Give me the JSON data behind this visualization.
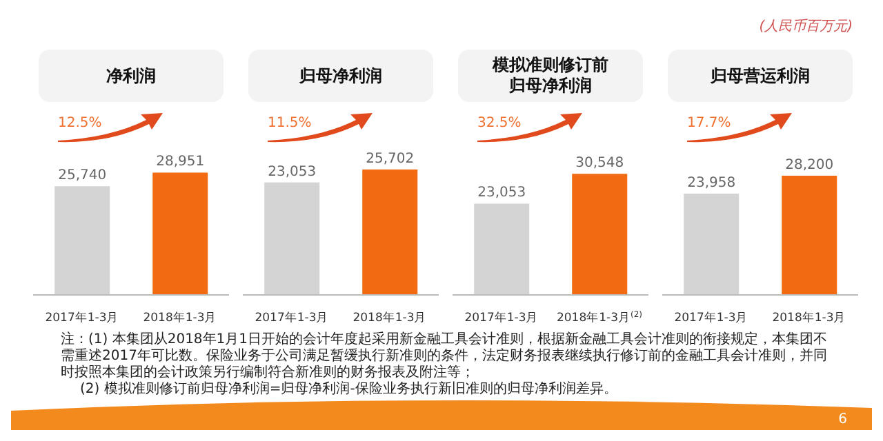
{
  "chart_data": [
    {
      "type": "bar",
      "title": "净利润",
      "categories": [
        "2017年1-3月",
        "2018年1-3月"
      ],
      "values": [
        25740,
        28951
      ],
      "colors": [
        "#d4d4d4",
        "#f26a12"
      ],
      "value_labels": [
        "25,740",
        "28,951"
      ],
      "annotations": [
        "12.5%"
      ]
    },
    {
      "type": "bar",
      "title": "归母净利润",
      "categories": [
        "2017年1-3月",
        "2018年1-3月"
      ],
      "values": [
        23053,
        25702
      ],
      "colors": [
        "#d4d4d4",
        "#f26a12"
      ],
      "value_labels": [
        "23,053",
        "25,702"
      ],
      "annotations": [
        "11.5%"
      ]
    },
    {
      "type": "bar",
      "title": "模拟准则修订前归母净利润",
      "categories": [
        "2017年1-3月",
        "2018年1-3月$^{(2)}$"
      ],
      "values": [
        23053,
        30548
      ],
      "colors": [
        "#d4d4d4",
        "#f26a12"
      ],
      "value_labels": [
        "23,053",
        "30,548"
      ],
      "annotations": [
        "32.5%"
      ]
    },
    {
      "type": "bar",
      "title": "归母营运利润",
      "categories": [
        "2017年1-3月",
        "2018年1-3月"
      ],
      "values": [
        23958,
        28200
      ],
      "colors": [
        "#d4d4d4",
        "#f26a12"
      ],
      "value_labels": [
        "23,958",
        "28,200"
      ],
      "annotations": [
        "17.7%"
      ]
    },
    {
      "type": "other",
      "annotations": [
        "(人民币百万元)",
        "注：(1) 本集团从2018年1月1日开始的会计年度起采用新金融工具会计准则，根据新金融工具会计准则的衔接规定，本集团不需重述2017年可比数。保险业务于公司满足暂缓执行新准则的条件，法定财务报表继续执行修订前的金融工具会计准则，并同时按照本集团的会计政策另行编制符合新准则的财务报表及附注等；",
        "(2) 模拟准则修订前归母净利润=归母净利润-保险业务执行新旧准则的归母净利润差异。",
        "6"
      ]
    }
  ]
}
